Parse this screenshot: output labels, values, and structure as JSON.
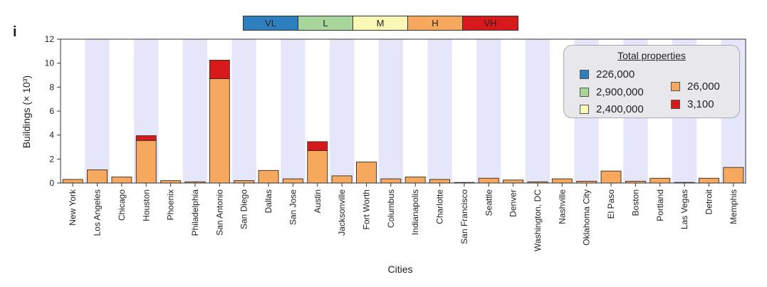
{
  "panel_label": "i",
  "hazard_scale": [
    {
      "label": "VL",
      "color": "#2e7fbd"
    },
    {
      "label": "L",
      "color": "#a6d69a"
    },
    {
      "label": "M",
      "color": "#fbf8b7"
    },
    {
      "label": "H",
      "color": "#f6a95e"
    },
    {
      "label": "VH",
      "color": "#d7191c"
    }
  ],
  "legend": {
    "title": "Total properties",
    "items": [
      {
        "label": "226,000",
        "color": "#2e7fbd"
      },
      {
        "label": "2,900,000",
        "color": "#a6d69a"
      },
      {
        "label": "2,400,000",
        "color": "#fbf8b7"
      },
      {
        "label": "26,000",
        "color": "#f6a95e"
      },
      {
        "label": "3,100",
        "color": "#d7191c"
      }
    ]
  },
  "chart_data": {
    "type": "bar",
    "stacked": true,
    "title": "",
    "xlabel": "Cities",
    "ylabel": "Buildings (× 10³)",
    "ylim": [
      0,
      12
    ],
    "yticks": [
      0,
      2,
      4,
      6,
      8,
      10,
      12
    ],
    "categories": [
      "New York",
      "Los Angeles",
      "Chicago",
      "Houston",
      "Phoenix",
      "Philadelphia",
      "San Antonio",
      "San Diego",
      "Dallas",
      "San Jose",
      "Austin",
      "Jacksonville",
      "Fort Worth",
      "Columbus",
      "Indianapolis",
      "Charlotte",
      "San Francisco",
      "Seattle",
      "Denver",
      "Washington, DC",
      "Nashville",
      "Oklahoma City",
      "El Paso",
      "Boston",
      "Portland",
      "Las Vegas",
      "Detroit",
      "Memphis"
    ],
    "series": [
      {
        "name": "H",
        "color": "#f6a95e",
        "values": [
          0.3,
          1.1,
          0.5,
          3.55,
          0.2,
          0.1,
          8.7,
          0.2,
          1.05,
          0.35,
          2.7,
          0.6,
          1.75,
          0.35,
          0.5,
          0.3,
          0.05,
          0.4,
          0.25,
          0.1,
          0.35,
          0.15,
          1.0,
          0.15,
          0.4,
          0.05,
          0.4,
          1.3
        ]
      },
      {
        "name": "VH",
        "color": "#d7191c",
        "values": [
          0,
          0,
          0,
          0.4,
          0,
          0,
          1.55,
          0,
          0,
          0,
          0.75,
          0,
          0,
          0,
          0,
          0,
          0,
          0,
          0,
          0,
          0,
          0,
          0,
          0,
          0,
          0,
          0,
          0
        ]
      }
    ],
    "band_color": "#e6e6fa"
  }
}
